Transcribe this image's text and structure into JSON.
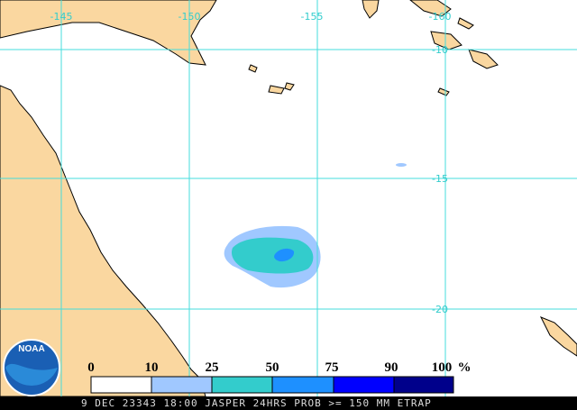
{
  "map": {
    "longitude_labels": [
      "-145",
      "-150",
      "-155",
      "-160"
    ],
    "latitude_labels": [
      "-10",
      "-15",
      "-20"
    ],
    "legend": {
      "labels": [
        "0",
        "10",
        "25",
        "50",
        "75",
        "90",
        "100"
      ],
      "unit": "%"
    },
    "logo": "NOAA",
    "footer": "9 DEC 23343 18:00 JASPER 24HRS PROB >= 150 MM ETRAP"
  }
}
